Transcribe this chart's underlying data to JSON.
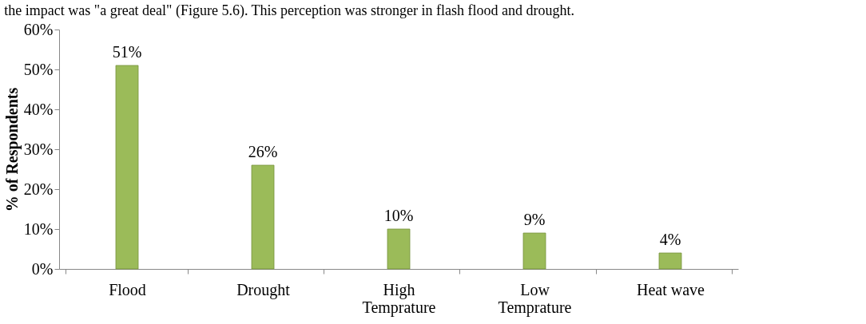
{
  "chart_data": {
    "type": "bar",
    "annotations": [
      "the impact was \"a great deal\" (Figure 5.6). This perception was stronger in flash flood and drought."
    ],
    "ylabel": "% of Respondents",
    "categories": [
      "Flood",
      "Drought",
      "High\nTemprature",
      "Low\nTemprature",
      "Heat wave"
    ],
    "values": [
      51,
      26,
      10,
      9,
      4
    ],
    "value_labels": [
      "51%",
      "26%",
      "10%",
      "9%",
      "4%"
    ],
    "color": "#9bbb59",
    "ylim": [
      0,
      60
    ],
    "yticks": [
      {
        "value": 0,
        "label": "0%"
      },
      {
        "value": 10,
        "label": "10%"
      },
      {
        "value": 20,
        "label": "20%"
      },
      {
        "value": 30,
        "label": "30%"
      },
      {
        "value": 40,
        "label": "40%"
      },
      {
        "value": 50,
        "label": "50%"
      },
      {
        "value": 60,
        "label": "60%"
      }
    ],
    "grid": false
  }
}
